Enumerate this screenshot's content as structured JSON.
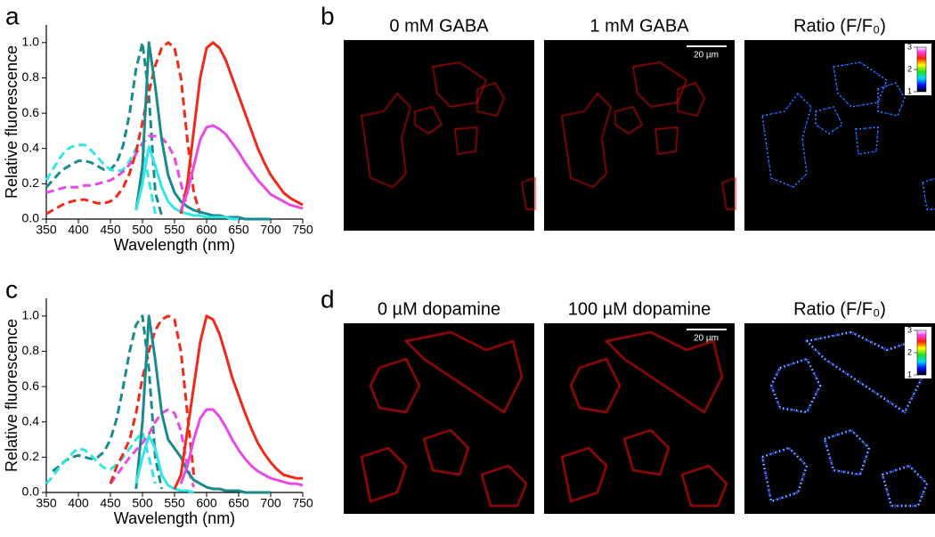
{
  "chart_data": [
    {
      "type": "line",
      "panel_label": "a",
      "x_label": "Wavelength (nm)",
      "y_label": "Relative fluorescence",
      "x": [
        350,
        360,
        370,
        380,
        390,
        400,
        410,
        420,
        430,
        440,
        450,
        460,
        470,
        480,
        490,
        500,
        510,
        520,
        530,
        540,
        550,
        560,
        570,
        580,
        590,
        600,
        610,
        620,
        630,
        640,
        650,
        660,
        670,
        680,
        690,
        700,
        710,
        720,
        730,
        740,
        750
      ],
      "xlim": [
        350,
        750
      ],
      "xticks": [
        350,
        400,
        450,
        500,
        550,
        600,
        650,
        700,
        750
      ],
      "ylim": [
        0,
        1.1
      ],
      "yticks": [
        {
          "value": 0,
          "label": "0.0"
        },
        0.2,
        0.4,
        0.6,
        0.8,
        {
          "value": 1,
          "label": "1.0"
        }
      ],
      "series": [
        {
          "color": "#1a8a8a",
          "dashed": true,
          "values": [
            0.18,
            0.22,
            0.26,
            0.29,
            0.31,
            0.33,
            0.33,
            0.32,
            0.3,
            0.28,
            0.28,
            0.32,
            0.42,
            0.6,
            0.85,
            1.0,
            0.7,
            0.15,
            0.02,
            null,
            null,
            null,
            null,
            null,
            null,
            null,
            null,
            null,
            null,
            null,
            null,
            null,
            null,
            null,
            null,
            null,
            null,
            null,
            null,
            null,
            null
          ]
        },
        {
          "color": "#33e6e6",
          "dashed": true,
          "values": [
            0.22,
            0.28,
            0.34,
            0.39,
            0.41,
            0.42,
            0.42,
            0.39,
            0.35,
            0.31,
            0.28,
            0.27,
            0.28,
            0.33,
            0.4,
            0.42,
            0.22,
            0.03,
            null,
            null,
            null,
            null,
            null,
            null,
            null,
            null,
            null,
            null,
            null,
            null,
            null,
            null,
            null,
            null,
            null,
            null,
            null,
            null,
            null,
            null,
            null
          ]
        },
        {
          "color": "#e64ae6",
          "dashed": true,
          "values": [
            0.15,
            0.16,
            0.17,
            0.18,
            0.18,
            0.18,
            0.19,
            0.19,
            0.2,
            0.21,
            0.22,
            0.24,
            0.27,
            0.31,
            0.37,
            0.43,
            0.47,
            0.47,
            0.46,
            0.42,
            0.35,
            0.2,
            0.07,
            null,
            null,
            null,
            null,
            null,
            null,
            null,
            null,
            null,
            null,
            null,
            null,
            null,
            null,
            null,
            null,
            null,
            null
          ]
        },
        {
          "color": "#ee2a1a",
          "dashed": true,
          "values": [
            0.03,
            0.05,
            0.07,
            0.09,
            0.1,
            0.11,
            0.11,
            0.1,
            0.09,
            0.09,
            0.1,
            0.13,
            0.18,
            0.26,
            0.38,
            0.55,
            0.72,
            0.87,
            0.97,
            1.0,
            0.97,
            0.8,
            0.45,
            0.15,
            0.03,
            null,
            null,
            null,
            null,
            null,
            null,
            null,
            null,
            null,
            null,
            null,
            null,
            null,
            null,
            null,
            null
          ]
        },
        {
          "color": "#1a8a8a",
          "dashed": false,
          "values": [
            null,
            null,
            null,
            null,
            null,
            null,
            null,
            null,
            null,
            null,
            null,
            null,
            null,
            null,
            0.05,
            0.3,
            1.0,
            0.75,
            0.45,
            0.25,
            0.15,
            0.1,
            0.07,
            0.05,
            0.04,
            0.03,
            0.02,
            0.02,
            0.01,
            0.01,
            0.01,
            0,
            0,
            0,
            0,
            0,
            null,
            null,
            null,
            null,
            null
          ]
        },
        {
          "color": "#33e6e6",
          "dashed": false,
          "values": [
            null,
            null,
            null,
            null,
            null,
            null,
            null,
            null,
            null,
            null,
            null,
            null,
            null,
            null,
            0.05,
            0.2,
            0.41,
            0.3,
            0.18,
            0.1,
            0.06,
            0.04,
            0.03,
            0.02,
            0.02,
            0.01,
            0.01,
            0.01,
            0.01,
            0,
            0,
            null,
            null,
            null,
            null,
            null,
            null,
            null,
            null,
            null,
            null
          ]
        },
        {
          "color": "#ee2a1a",
          "dashed": false,
          "values": [
            null,
            null,
            null,
            null,
            null,
            null,
            null,
            null,
            null,
            null,
            null,
            null,
            null,
            null,
            null,
            null,
            null,
            null,
            null,
            null,
            null,
            0.03,
            0.2,
            0.5,
            0.8,
            0.97,
            1.0,
            0.97,
            0.9,
            0.8,
            0.7,
            0.6,
            0.5,
            0.4,
            0.32,
            0.25,
            0.2,
            0.15,
            0.12,
            0.1,
            0.08
          ]
        },
        {
          "color": "#e64ae6",
          "dashed": false,
          "values": [
            null,
            null,
            null,
            null,
            null,
            null,
            null,
            null,
            null,
            null,
            null,
            null,
            null,
            null,
            null,
            null,
            null,
            null,
            null,
            null,
            null,
            0.05,
            0.15,
            0.3,
            0.45,
            0.52,
            0.53,
            0.51,
            0.48,
            0.43,
            0.38,
            0.32,
            0.27,
            0.22,
            0.18,
            0.14,
            0.12,
            0.1,
            0.08,
            0.07,
            0.06
          ]
        }
      ]
    },
    {
      "type": "line",
      "panel_label": "c",
      "x_label": "Wavelength (nm)",
      "y_label": "Relative fluorescence",
      "x": [
        350,
        360,
        370,
        380,
        390,
        400,
        410,
        420,
        430,
        440,
        450,
        460,
        470,
        480,
        490,
        500,
        510,
        520,
        530,
        540,
        550,
        560,
        570,
        580,
        590,
        600,
        610,
        620,
        630,
        640,
        650,
        660,
        670,
        680,
        690,
        700,
        710,
        720,
        730,
        740,
        750
      ],
      "xlim": [
        350,
        750
      ],
      "xticks": [
        350,
        400,
        450,
        500,
        550,
        600,
        650,
        700,
        750
      ],
      "ylim": [
        0,
        1.1
      ],
      "yticks": [
        {
          "value": 0,
          "label": "0.0"
        },
        0.2,
        0.4,
        0.6,
        0.8,
        {
          "value": 1,
          "label": "1.0"
        }
      ],
      "series": [
        {
          "color": "#1a8a8a",
          "dashed": true,
          "values": [
            null,
            0.12,
            0.15,
            0.18,
            0.2,
            0.21,
            0.2,
            0.19,
            0.2,
            0.23,
            0.3,
            0.42,
            0.6,
            0.8,
            0.95,
            1.0,
            0.7,
            0.2,
            0.02,
            null,
            null,
            null,
            null,
            null,
            null,
            null,
            null,
            null,
            null,
            null,
            null,
            null,
            null,
            null,
            null,
            null,
            null,
            null,
            null,
            null,
            null
          ]
        },
        {
          "color": "#33e6e6",
          "dashed": true,
          "values": [
            0.05,
            0.09,
            0.14,
            0.18,
            0.22,
            0.25,
            0.24,
            0.21,
            0.17,
            0.14,
            0.13,
            0.16,
            0.2,
            0.25,
            0.3,
            0.34,
            0.2,
            0.05,
            null,
            null,
            null,
            null,
            null,
            null,
            null,
            null,
            null,
            null,
            null,
            null,
            null,
            null,
            null,
            null,
            null,
            null,
            null,
            null,
            null,
            null,
            null
          ]
        },
        {
          "color": "#e64ae6",
          "dashed": true,
          "values": [
            null,
            null,
            null,
            null,
            null,
            null,
            null,
            null,
            null,
            null,
            0.05,
            0.1,
            0.15,
            0.2,
            0.24,
            0.28,
            0.33,
            0.4,
            0.45,
            0.47,
            0.45,
            0.35,
            0.15,
            0.03,
            null,
            null,
            null,
            null,
            null,
            null,
            null,
            null,
            null,
            null,
            null,
            null,
            null,
            null,
            null,
            null,
            null
          ]
        },
        {
          "color": "#ee2a1a",
          "dashed": true,
          "values": [
            null,
            null,
            null,
            null,
            null,
            null,
            null,
            null,
            null,
            null,
            0.05,
            0.15,
            0.22,
            0.3,
            0.45,
            0.65,
            0.8,
            0.92,
            0.98,
            1.0,
            0.98,
            0.8,
            0.45,
            0.1,
            null,
            null,
            null,
            null,
            null,
            null,
            null,
            null,
            null,
            null,
            null,
            null,
            null,
            null,
            null,
            null,
            null
          ]
        },
        {
          "color": "#1a8a8a",
          "dashed": false,
          "values": [
            null,
            null,
            null,
            null,
            null,
            null,
            null,
            null,
            null,
            null,
            null,
            null,
            null,
            null,
            0.02,
            0.4,
            1.0,
            0.75,
            0.45,
            0.3,
            0.25,
            0.2,
            0.12,
            0.07,
            0.05,
            0.03,
            0.02,
            0.02,
            0.01,
            0.01,
            0.01,
            0,
            0,
            0,
            0,
            0,
            null,
            null,
            null,
            null,
            null
          ]
        },
        {
          "color": "#33e6e6",
          "dashed": false,
          "values": [
            null,
            null,
            null,
            null,
            null,
            null,
            null,
            null,
            null,
            null,
            null,
            null,
            null,
            null,
            0.05,
            0.2,
            0.32,
            0.25,
            0.1,
            0.04,
            0.02,
            0.01,
            0.01,
            0,
            null,
            null,
            null,
            null,
            null,
            null,
            null,
            null,
            null,
            null,
            null,
            null,
            null,
            null,
            null,
            null,
            null
          ]
        },
        {
          "color": "#ee2a1a",
          "dashed": false,
          "values": [
            null,
            null,
            null,
            null,
            null,
            null,
            null,
            null,
            null,
            null,
            null,
            null,
            null,
            null,
            null,
            null,
            null,
            null,
            null,
            null,
            0.02,
            0.1,
            0.35,
            0.6,
            0.85,
            1.0,
            0.98,
            0.9,
            0.78,
            0.65,
            0.55,
            0.45,
            0.36,
            0.28,
            0.22,
            0.17,
            0.13,
            0.1,
            0.09,
            0.08,
            0.08
          ]
        },
        {
          "color": "#e64ae6",
          "dashed": false,
          "values": [
            null,
            null,
            null,
            null,
            null,
            null,
            null,
            null,
            null,
            null,
            null,
            null,
            null,
            null,
            null,
            null,
            null,
            null,
            null,
            null,
            null,
            0.05,
            0.15,
            0.3,
            0.42,
            0.47,
            0.47,
            0.43,
            0.37,
            0.3,
            0.24,
            0.19,
            0.15,
            0.12,
            0.1,
            0.08,
            0.07,
            0.06,
            0.05,
            0.05,
            0.04
          ]
        }
      ]
    }
  ],
  "image_panels": [
    {
      "panel_label": "b",
      "titles": [
        "0 mM GABA",
        "1 mM GABA",
        "Ratio (F/F₀)"
      ],
      "scale_bar": "20 µm",
      "colorbar": {
        "lim": [
          1,
          3
        ],
        "ticks": [
          1,
          2,
          3
        ]
      }
    },
    {
      "panel_label": "d",
      "titles": [
        "0 µM dopamine",
        "100 µM dopamine",
        "Ratio (F/F₀)"
      ],
      "scale_bar": "20 µm",
      "colorbar": {
        "lim": [
          1,
          3
        ],
        "ticks": [
          1,
          2,
          3
        ]
      }
    }
  ]
}
